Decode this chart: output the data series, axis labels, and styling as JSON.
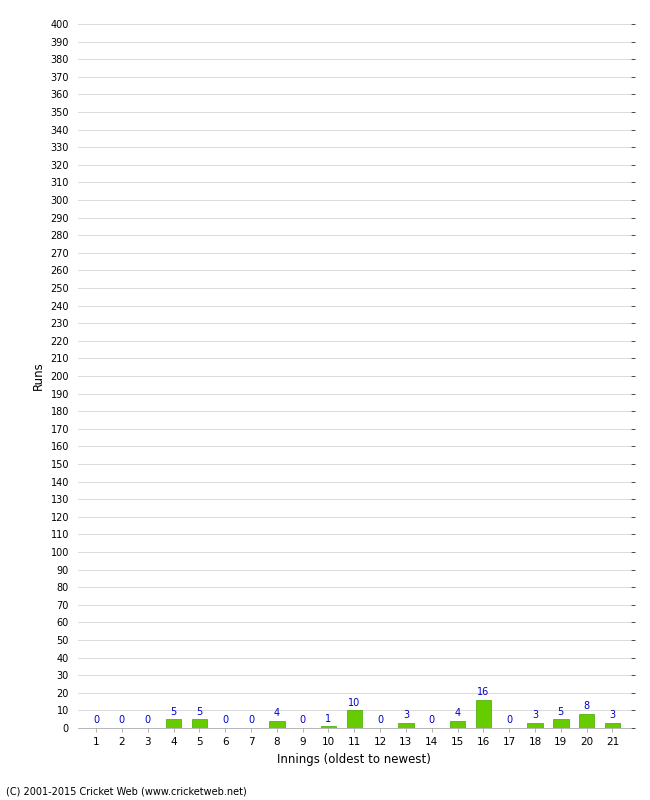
{
  "xlabel": "Innings (oldest to newest)",
  "ylabel": "Runs",
  "categories": [
    1,
    2,
    3,
    4,
    5,
    6,
    7,
    8,
    9,
    10,
    11,
    12,
    13,
    14,
    15,
    16,
    17,
    18,
    19,
    20,
    21
  ],
  "values": [
    0,
    0,
    0,
    5,
    5,
    0,
    0,
    4,
    0,
    1,
    10,
    0,
    3,
    0,
    4,
    16,
    0,
    3,
    5,
    8,
    3
  ],
  "bar_color": "#66cc00",
  "bar_edge_color": "#44aa00",
  "label_color": "#0000cc",
  "ylim": [
    0,
    400
  ],
  "ytick_step": 10,
  "background_color": "#ffffff",
  "grid_color": "#cccccc",
  "footer": "(C) 2001-2015 Cricket Web (www.cricketweb.net)"
}
